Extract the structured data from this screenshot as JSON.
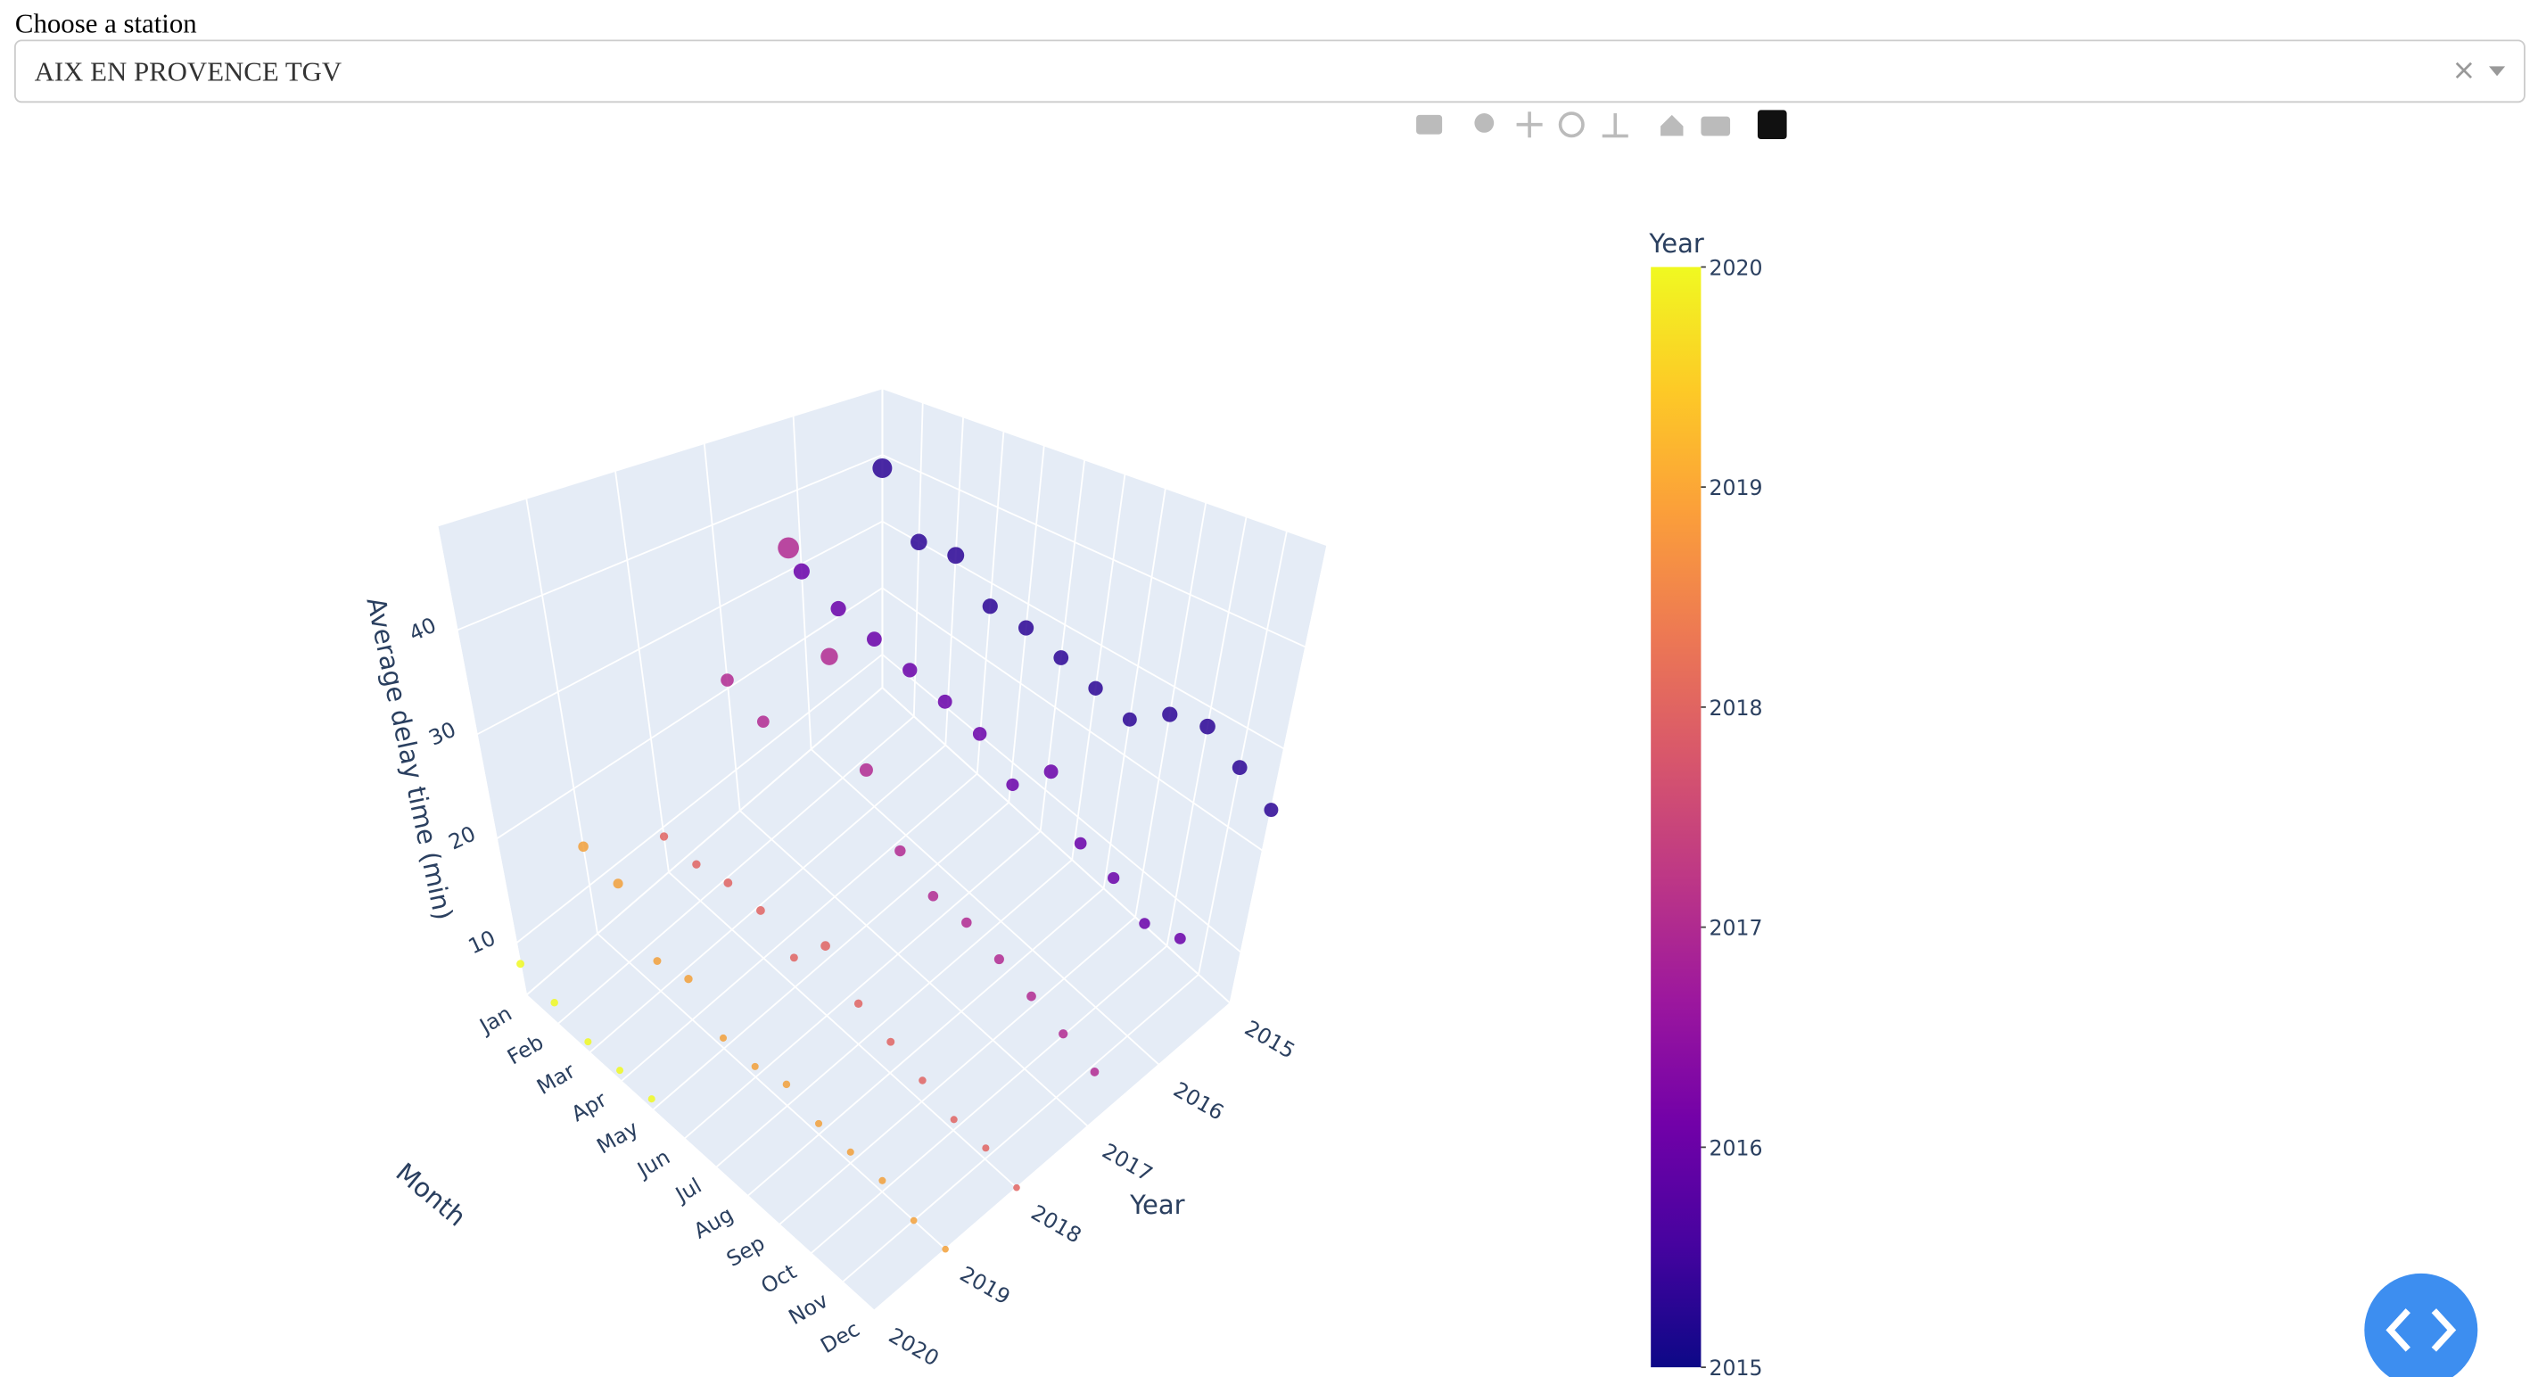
{
  "dropdown": {
    "label": "Choose a station",
    "value": "AIX EN PROVENCE TGV"
  },
  "chart_data": {
    "type": "scatter3d",
    "x_title": "Month",
    "y_title": "Year",
    "z_title": "Average delay time (min)",
    "categories": [
      "Jan",
      "Feb",
      "Mar",
      "Apr",
      "May",
      "Jun",
      "Jul",
      "Aug",
      "Sep",
      "Oct",
      "Nov",
      "Dec"
    ],
    "series": [
      {
        "name": "2015",
        "color": "#2c0594",
        "values": [
          38,
          30,
          31,
          27,
          27,
          26,
          25,
          24,
          27,
          28,
          26,
          24
        ]
      },
      {
        "name": "2016",
        "color": "#6a00a8",
        "values": [
          29,
          27,
          26,
          25,
          24,
          23,
          20,
          24,
          19,
          18,
          16,
          17
        ]
      },
      {
        "name": "2017",
        "color": "#b12a90",
        "values": [
          21,
          19,
          42,
          32,
          22,
          16,
          14,
          14,
          13,
          12,
          11,
          10
        ]
      },
      {
        "name": "2018",
        "color": "#e16462",
        "values": [
          9,
          9,
          10,
          10,
          8,
          12,
          9,
          8,
          7,
          6,
          6,
          5
        ]
      },
      {
        "name": "2019",
        "color": "#f2a03a",
        "values": [
          14,
          13,
          8,
          9,
          6,
          6,
          7,
          6,
          6,
          6,
          5,
          5
        ]
      },
      {
        "name": "2020",
        "color": "#f0f921",
        "values": [
          8,
          7,
          6,
          6,
          6,
          null,
          null,
          null,
          null,
          null,
          null,
          null
        ]
      }
    ],
    "zlim": [
      5,
      50
    ],
    "zticks": [
      10,
      20,
      30,
      40
    ],
    "colorbar": {
      "title": "Year",
      "range": [
        2015,
        2020
      ],
      "ticks": [
        2015,
        2016,
        2017,
        2018,
        2019,
        2020
      ],
      "colorscale": [
        "#0d0887",
        "#46039f",
        "#7201a8",
        "#9c179e",
        "#bd3786",
        "#d8576b",
        "#ed7953",
        "#fb9f3a",
        "#fdca26",
        "#f0f921"
      ]
    }
  }
}
